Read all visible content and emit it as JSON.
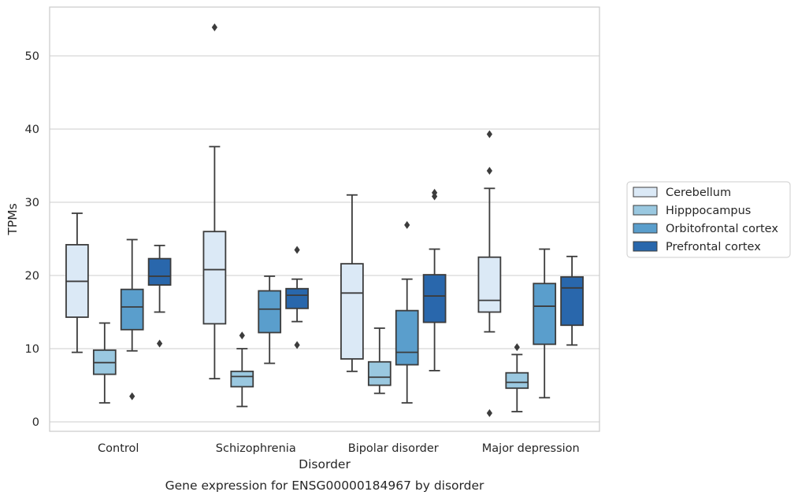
{
  "chart_data": {
    "type": "boxplot",
    "title": "Gene expression for ENSG00000184967 by disorder",
    "xlabel": "Disorder",
    "ylabel": "TPMs",
    "ylim": [
      -1.2,
      56.7
    ],
    "yticks": [
      0,
      10,
      20,
      30,
      40,
      50
    ],
    "grid": "horizontal",
    "legend_position": "right",
    "categories": [
      "Control",
      "Schizophrenia",
      "Bipolar disorder",
      "Major depression"
    ],
    "series": [
      {
        "name": "Cerebellum",
        "color": "#dbe9f6",
        "boxes": [
          {
            "whislo": 9.5,
            "q1": 14.3,
            "med": 19.2,
            "q3": 24.2,
            "whishi": 28.5,
            "fliers": []
          },
          {
            "whislo": 5.9,
            "q1": 13.4,
            "med": 20.8,
            "q3": 26.0,
            "whishi": 37.6,
            "fliers": [
              53.9
            ]
          },
          {
            "whislo": 6.9,
            "q1": 8.6,
            "med": 17.6,
            "q3": 21.6,
            "whishi": 31.0,
            "fliers": []
          },
          {
            "whislo": 12.3,
            "q1": 15.0,
            "med": 16.6,
            "q3": 22.5,
            "whishi": 31.9,
            "fliers": [
              39.3,
              34.3,
              1.2
            ]
          }
        ]
      },
      {
        "name": "Hipppocampus",
        "color": "#9ac8e0",
        "boxes": [
          {
            "whislo": 2.6,
            "q1": 6.5,
            "med": 8.1,
            "q3": 9.8,
            "whishi": 13.5,
            "fliers": []
          },
          {
            "whislo": 2.1,
            "q1": 4.8,
            "med": 6.2,
            "q3": 6.9,
            "whishi": 10.0,
            "fliers": [
              11.8
            ]
          },
          {
            "whislo": 3.9,
            "q1": 5.0,
            "med": 6.1,
            "q3": 8.2,
            "whishi": 12.8,
            "fliers": []
          },
          {
            "whislo": 1.4,
            "q1": 4.6,
            "med": 5.4,
            "q3": 6.7,
            "whishi": 9.2,
            "fliers": [
              10.2
            ]
          }
        ]
      },
      {
        "name": "Orbitofrontal cortex",
        "color": "#5a9ecc",
        "boxes": [
          {
            "whislo": 9.7,
            "q1": 12.6,
            "med": 15.7,
            "q3": 18.1,
            "whishi": 24.9,
            "fliers": [
              3.5
            ]
          },
          {
            "whislo": 8.0,
            "q1": 12.2,
            "med": 15.4,
            "q3": 17.9,
            "whishi": 19.9,
            "fliers": []
          },
          {
            "whislo": 2.6,
            "q1": 7.8,
            "med": 9.5,
            "q3": 15.2,
            "whishi": 19.5,
            "fliers": [
              26.9
            ]
          },
          {
            "whislo": 3.3,
            "q1": 10.6,
            "med": 15.8,
            "q3": 18.9,
            "whishi": 23.6,
            "fliers": []
          }
        ]
      },
      {
        "name": "Prefrontal cortex",
        "color": "#2967ac",
        "boxes": [
          {
            "whislo": 15.0,
            "q1": 18.7,
            "med": 19.9,
            "q3": 22.3,
            "whishi": 24.1,
            "fliers": [
              10.7
            ]
          },
          {
            "whislo": 13.7,
            "q1": 15.5,
            "med": 17.3,
            "q3": 18.2,
            "whishi": 19.5,
            "fliers": [
              23.5,
              10.5
            ]
          },
          {
            "whislo": 7.0,
            "q1": 13.6,
            "med": 17.2,
            "q3": 20.1,
            "whishi": 23.6,
            "fliers": [
              31.3,
              30.8
            ]
          },
          {
            "whislo": 10.5,
            "q1": 13.2,
            "med": 18.3,
            "q3": 19.8,
            "whishi": 22.6,
            "fliers": []
          }
        ]
      }
    ]
  }
}
